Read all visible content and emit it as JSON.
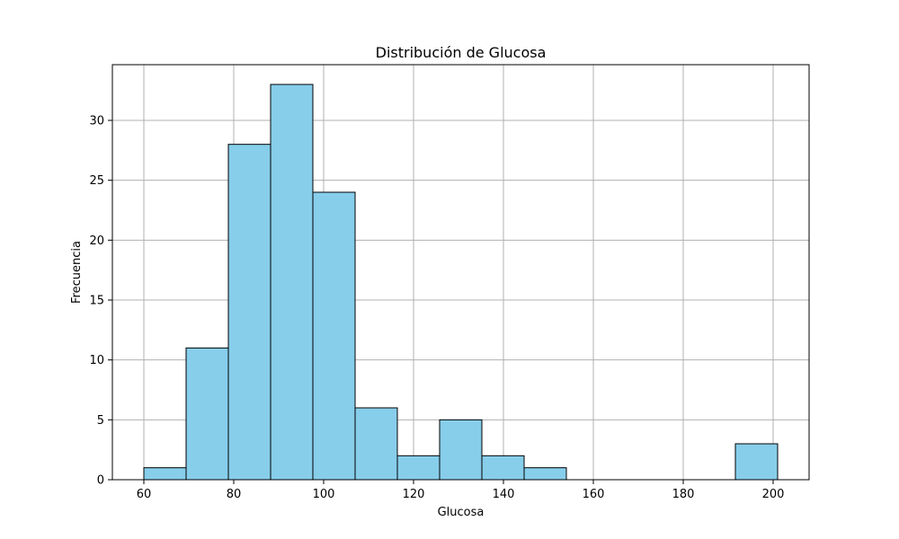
{
  "chart_data": {
    "type": "bar",
    "title": "Distribución de Glucosa",
    "xlabel": "Glucosa",
    "ylabel": "Frecuencia",
    "grid": true,
    "bar_color": "#87CEEB",
    "edge_color": "#000000",
    "bins": [
      {
        "start": 60.0,
        "end": 69.4,
        "count": 1
      },
      {
        "start": 69.4,
        "end": 78.8,
        "count": 11
      },
      {
        "start": 78.8,
        "end": 88.2,
        "count": 28
      },
      {
        "start": 88.2,
        "end": 97.6,
        "count": 33
      },
      {
        "start": 97.6,
        "end": 107.0,
        "count": 24
      },
      {
        "start": 107.0,
        "end": 116.4,
        "count": 6
      },
      {
        "start": 116.4,
        "end": 125.8,
        "count": 2
      },
      {
        "start": 125.8,
        "end": 135.2,
        "count": 5
      },
      {
        "start": 135.2,
        "end": 144.6,
        "count": 2
      },
      {
        "start": 144.6,
        "end": 154.0,
        "count": 1
      },
      {
        "start": 154.0,
        "end": 163.4,
        "count": 0
      },
      {
        "start": 163.4,
        "end": 172.8,
        "count": 0
      },
      {
        "start": 172.8,
        "end": 182.2,
        "count": 0
      },
      {
        "start": 182.2,
        "end": 191.6,
        "count": 0
      },
      {
        "start": 191.6,
        "end": 201.0,
        "count": 3
      }
    ],
    "xlim": [
      53.0,
      208.0
    ],
    "ylim": [
      0,
      34.65
    ],
    "xticks": [
      60,
      80,
      100,
      120,
      140,
      160,
      180,
      200
    ],
    "yticks": [
      0,
      5,
      10,
      15,
      20,
      25,
      30
    ]
  }
}
